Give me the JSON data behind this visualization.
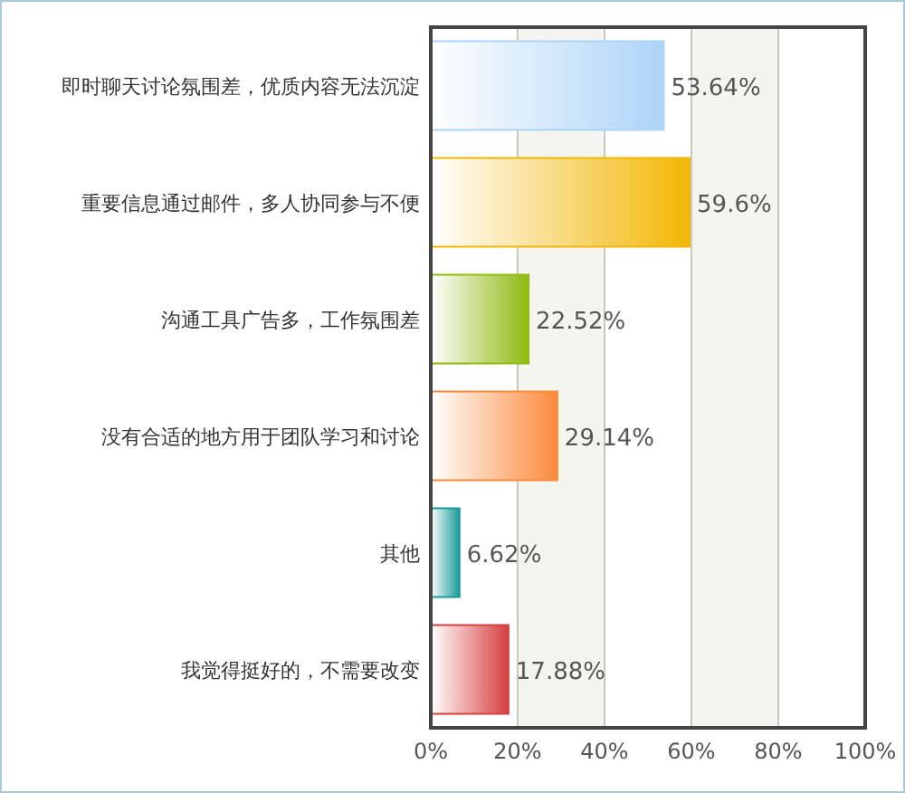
{
  "chart_data": {
    "type": "bar",
    "orientation": "horizontal",
    "categories": [
      "即时聊天讨论氛围差，优质内容无法沉淀",
      "重要信息通过邮件，多人协同参与不便",
      "沟通工具广告多，工作氛围差",
      "没有合适的地方用于团队学习和讨论",
      "其他",
      "我觉得挺好的，不需要改变"
    ],
    "values": [
      53.64,
      59.6,
      22.52,
      29.14,
      6.62,
      17.88
    ],
    "value_labels": [
      "53.64%",
      "59.6%",
      "22.52%",
      "29.14%",
      "6.62%",
      "17.88%"
    ],
    "colors": [
      "#acd4f6",
      "#f2b705",
      "#8fba10",
      "#fb8a3c",
      "#1c9a9a",
      "#d64040"
    ],
    "xlim": [
      0,
      100
    ],
    "xticks": [
      {
        "value": 0,
        "label": "0%"
      },
      {
        "value": 20,
        "label": "20%"
      },
      {
        "value": 40,
        "label": "40%"
      },
      {
        "value": 60,
        "label": "60%"
      },
      {
        "value": 80,
        "label": "80%"
      },
      {
        "value": 100,
        "label": "100%"
      }
    ],
    "grid": "x"
  }
}
